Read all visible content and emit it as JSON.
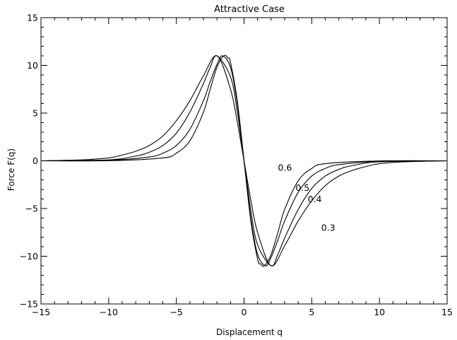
{
  "chart_data": {
    "type": "line",
    "title": "Attractive Case",
    "xlabel": "Displacement q",
    "ylabel": "Force F(q)",
    "xlim": [
      -15,
      15
    ],
    "ylim": [
      -15,
      15
    ],
    "x_ticks": [
      -15,
      -10,
      -5,
      0,
      5,
      10,
      15
    ],
    "y_ticks": [
      -15,
      -10,
      -5,
      0,
      5,
      10,
      15
    ],
    "x_tick_labels": [
      "−15",
      "−10",
      "−5",
      "0",
      "5",
      "10",
      "15"
    ],
    "y_tick_labels": [
      "−15",
      "−10",
      "−5",
      "0",
      "5",
      "10",
      "15"
    ],
    "grid": false,
    "series": [
      {
        "name": "0.6",
        "x": [
          -15,
          -10,
          -6,
          -5,
          -4,
          -3,
          -2.5,
          -2,
          -1.5,
          -1.2,
          -1,
          -0.5,
          0,
          0.5,
          1,
          1.2,
          1.5,
          2,
          2.5,
          3,
          4,
          5,
          6,
          10,
          15
        ],
        "y": [
          0,
          0.01,
          0.3,
          0.8,
          2.1,
          5.1,
          7.5,
          9.8,
          11.0,
          10.8,
          10.3,
          6.3,
          0,
          -6.3,
          -10.3,
          -10.8,
          -11.0,
          -9.8,
          -7.5,
          -5.1,
          -2.1,
          -0.8,
          -0.3,
          -0.01,
          0
        ]
      },
      {
        "name": "0.5",
        "x": [
          -15,
          -10,
          -7,
          -6,
          -5,
          -4,
          -3,
          -2.5,
          -2,
          -1.6,
          -1,
          -0.5,
          0,
          0.5,
          1,
          1.6,
          2,
          2.5,
          3,
          4,
          5,
          6,
          7,
          10,
          15
        ],
        "y": [
          0,
          0.05,
          0.4,
          0.8,
          1.6,
          3.3,
          6.3,
          8.3,
          10.1,
          11.0,
          9.8,
          6.0,
          0,
          -6.0,
          -9.8,
          -11.0,
          -10.1,
          -8.3,
          -6.3,
          -3.3,
          -1.6,
          -0.8,
          -0.4,
          -0.05,
          0
        ]
      },
      {
        "name": "0.4",
        "x": [
          -15,
          -10,
          -8,
          -7,
          -6,
          -5,
          -4,
          -3,
          -2.5,
          -2,
          -1,
          -0.5,
          0,
          0.5,
          1,
          2,
          2.5,
          3,
          4,
          5,
          6,
          7,
          8,
          10,
          15
        ],
        "y": [
          0,
          0.1,
          0.5,
          0.9,
          1.6,
          2.9,
          5.1,
          8.1,
          9.8,
          11.0,
          8.8,
          5.2,
          0,
          -5.2,
          -8.8,
          -11.0,
          -9.8,
          -8.1,
          -5.1,
          -2.9,
          -1.6,
          -0.9,
          -0.5,
          -0.1,
          0
        ]
      },
      {
        "name": "0.3",
        "x": [
          -15,
          -12,
          -10,
          -9,
          -8,
          -7,
          -6,
          -5,
          -4,
          -3,
          -2,
          -1,
          -0.5,
          0,
          0.5,
          1,
          2,
          3,
          4,
          5,
          6,
          7,
          8,
          9,
          10,
          12,
          15
        ],
        "y": [
          0,
          0.1,
          0.3,
          0.6,
          1.0,
          1.6,
          2.6,
          4.2,
          6.3,
          8.9,
          11.0,
          7.5,
          4.1,
          0,
          -4.1,
          -7.5,
          -11.0,
          -8.9,
          -6.3,
          -4.2,
          -2.6,
          -1.6,
          -1.0,
          -0.6,
          -0.3,
          -0.1,
          0
        ]
      }
    ],
    "annotations": [
      {
        "text": "0.6",
        "x": 2.5,
        "y": -0.7
      },
      {
        "text": "0.5",
        "x": 3.8,
        "y": -2.8
      },
      {
        "text": "0.4",
        "x": 4.7,
        "y": -4.0
      },
      {
        "text": "0.3",
        "x": 5.7,
        "y": -7.0
      }
    ]
  }
}
